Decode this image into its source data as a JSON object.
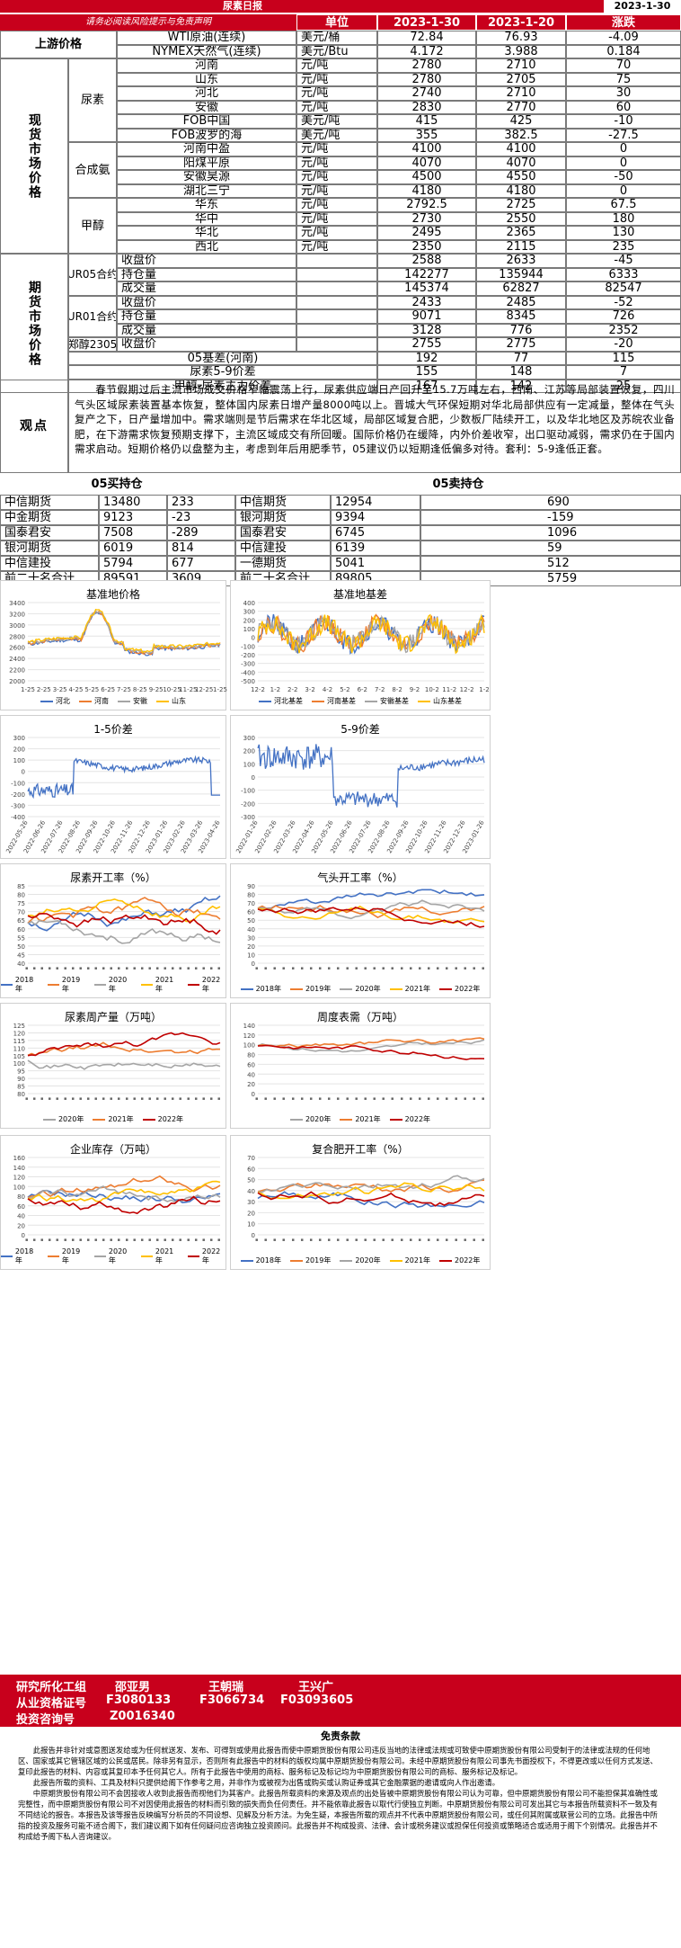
{
  "header": {
    "title": "尿素日报",
    "date": "2023-1-30",
    "links": "请务必阅读风险提示与免责声明",
    "col_unit": "单位",
    "col_d1": "2023-1-30",
    "col_d2": "2023-1-20",
    "col_chg": "涨跌"
  },
  "upstream": {
    "label": "上游价格",
    "rows": [
      [
        "WTI原油(连续)",
        "美元/桶",
        "72.84",
        "76.93",
        "-4.09"
      ],
      [
        "NYMEX天然气(连续)",
        "美元/Btu",
        "4.172",
        "3.988",
        "0.184"
      ]
    ]
  },
  "spot": {
    "label": "现货市场价格",
    "groups": [
      {
        "name": "尿素",
        "rows": [
          [
            "河南",
            "元/吨",
            "2780",
            "2710",
            "70"
          ],
          [
            "山东",
            "元/吨",
            "2780",
            "2705",
            "75"
          ],
          [
            "河北",
            "元/吨",
            "2740",
            "2710",
            "30"
          ],
          [
            "安徽",
            "元/吨",
            "2830",
            "2770",
            "60"
          ],
          [
            "FOB中国",
            "美元/吨",
            "415",
            "425",
            "-10"
          ],
          [
            "FOB波罗的海",
            "美元/吨",
            "355",
            "382.5",
            "-27.5"
          ]
        ]
      },
      {
        "name": "合成氨",
        "rows": [
          [
            "河南中盈",
            "元/吨",
            "4100",
            "4100",
            "0"
          ],
          [
            "阳煤平原",
            "元/吨",
            "4070",
            "4070",
            "0"
          ],
          [
            "安徽昊源",
            "元/吨",
            "4500",
            "4550",
            "-50"
          ],
          [
            "湖北三宁",
            "元/吨",
            "4180",
            "4180",
            "0"
          ]
        ]
      },
      {
        "name": "甲醇",
        "rows": [
          [
            "华东",
            "元/吨",
            "2792.5",
            "2725",
            "67.5"
          ],
          [
            "华中",
            "元/吨",
            "2730",
            "2550",
            "180"
          ],
          [
            "华北",
            "元/吨",
            "2495",
            "2365",
            "130"
          ],
          [
            "西北",
            "元/吨",
            "2350",
            "2115",
            "235"
          ]
        ]
      }
    ]
  },
  "futures": {
    "label": "期货市场价格",
    "groups": [
      {
        "name": "UR05合约",
        "rows": [
          [
            "收盘价",
            "",
            "2588",
            "2633",
            "-45"
          ],
          [
            "持仓量",
            "",
            "142277",
            "135944",
            "6333"
          ],
          [
            "成交量",
            "",
            "145374",
            "62827",
            "82547"
          ]
        ]
      },
      {
        "name": "UR01合约",
        "rows": [
          [
            "收盘价",
            "",
            "2433",
            "2485",
            "-52"
          ],
          [
            "持仓量",
            "",
            "9071",
            "8345",
            "726"
          ],
          [
            "成交量",
            "",
            "3128",
            "776",
            "2352"
          ]
        ]
      },
      {
        "name": "郑醇2305",
        "rows": [
          [
            "收盘价",
            "",
            "2755",
            "2775",
            "-20"
          ]
        ]
      }
    ],
    "spreads": [
      [
        "05基差(河南)",
        "192",
        "77",
        "115"
      ],
      [
        "尿素5-9价差",
        "155",
        "148",
        "7"
      ],
      [
        "甲醇-尿素主力价差",
        "167",
        "142",
        "25"
      ]
    ]
  },
  "view": {
    "label": "观点",
    "text": "春节假期过后主流市场成交价格窄幅震荡上行，尿素供应端日产回升至15.7万吨左右，西南、江苏等局部装置恢复，四川气头区域尿素装置基本恢复，整体国内尿素日增产量8000吨以上。晋城大气环保短期对华北局部供应有一定减量，整体在气头复产之下，日产量增加中。需求端则是节后需求在华北区域，局部区域复合肥，少数板厂陆续开工，以及华北地区及苏皖农业备肥，在下游需求恢复预期支撑下，主流区域成交有所回暖。国际价格仍在缓降，内外价差收窄，出口驱动减弱，需求仍在于国内需求启动。短期价格仍以盘整为主，考虑到年后用肥季节，05建议仍以短期逢低偏多对待。套利：5-9逢低正套。"
  },
  "positions": {
    "buy_title": "05买持仓",
    "sell_title": "05卖持仓",
    "buy": [
      [
        "中信期货",
        "13480",
        "233"
      ],
      [
        "中金期货",
        "9123",
        "-23"
      ],
      [
        "国泰君安",
        "7508",
        "-289"
      ],
      [
        "银河期货",
        "6019",
        "814"
      ],
      [
        "中信建投",
        "5794",
        "677"
      ],
      [
        "前二十名合计",
        "89591",
        "3609"
      ]
    ],
    "sell": [
      [
        "中信期货",
        "12954",
        "690"
      ],
      [
        "银河期货",
        "9394",
        "-159"
      ],
      [
        "国泰君安",
        "6745",
        "1096"
      ],
      [
        "中信建投",
        "6139",
        "59"
      ],
      [
        "一德期货",
        "5041",
        "512"
      ],
      [
        "前二十名合计",
        "89805",
        "5759"
      ]
    ]
  },
  "charts": {
    "basis_price": {
      "title": "基准地价格",
      "series": [
        "河北",
        "河南",
        "安徽",
        "山东"
      ],
      "y_ticks": [
        "3400",
        "3200",
        "3000",
        "2800",
        "2600",
        "2400",
        "2200",
        "2000"
      ],
      "x_ticks": [
        "1-25",
        "2-25",
        "3-25",
        "4-25",
        "5-25",
        "6-25",
        "7-25",
        "8-25",
        "9-25",
        "10-25",
        "11-25",
        "12-25",
        "1-25"
      ]
    },
    "basis_diff": {
      "title": "基准地基差",
      "series": [
        "河北基差",
        "河南基差",
        "安徽基差",
        "山东基差"
      ],
      "y_ticks": [
        "400",
        "300",
        "200",
        "100",
        "0",
        "-100",
        "-200",
        "-300",
        "-400",
        "-500"
      ],
      "x_ticks": [
        "12-2",
        "1-2",
        "2-2",
        "3-2",
        "4-2",
        "5-2",
        "6-2",
        "7-2",
        "8-2",
        "9-2",
        "10-2",
        "11-2",
        "12-2",
        "1-2"
      ]
    },
    "spread15": {
      "title": "1-5价差",
      "y_ticks": [
        "300",
        "200",
        "100",
        "0",
        "-100",
        "-200",
        "-300",
        "-400"
      ],
      "x_ticks": [
        "2022-05-26",
        "2022-06-26",
        "2022-07-26",
        "2022-08-26",
        "2022-09-26",
        "2022-10-26",
        "2022-11-26",
        "2022-12-26",
        "2023-01-26",
        "2023-02-26",
        "2023-03-26",
        "2023-04-26"
      ]
    },
    "spread59": {
      "title": "5-9价差",
      "y_ticks": [
        "300",
        "200",
        "100",
        "0",
        "-100",
        "-200",
        "-300"
      ],
      "x_ticks": [
        "2022-01-26",
        "2022-02-26",
        "2022-03-26",
        "2022-04-26",
        "2022-05-26",
        "2022-06-26",
        "2022-07-26",
        "2022-08-26",
        "2022-09-26",
        "2022-10-26",
        "2022-11-26",
        "2022-12-26",
        "2023-01-26"
      ]
    },
    "urea_rate": {
      "title": "尿素开工率（%）",
      "series": [
        "2018年",
        "2019年",
        "2020年",
        "2021年",
        "2022年"
      ],
      "y_ticks": [
        "85",
        "80",
        "75",
        "70",
        "65",
        "60",
        "55",
        "50",
        "45",
        "40"
      ]
    },
    "gas_rate": {
      "title": "气头开工率（%）",
      "series": [
        "2018年",
        "2019年",
        "2020年",
        "2021年",
        "2022年"
      ],
      "y_ticks": [
        "90",
        "80",
        "70",
        "60",
        "50",
        "40",
        "30",
        "20",
        "10",
        "0"
      ]
    },
    "weekly_output": {
      "title": "尿素周产量（万吨）",
      "series": [
        "2020年",
        "2021年",
        "2022年"
      ],
      "y_ticks": [
        "125",
        "120",
        "115",
        "110",
        "105",
        "100",
        "95",
        "90",
        "85",
        "80"
      ]
    },
    "weekly_demand": {
      "title": "周度表需（万吨）",
      "series": [
        "2020年",
        "2021年",
        "2022年"
      ],
      "y_ticks": [
        "140",
        "120",
        "100",
        "80",
        "60",
        "40",
        "20",
        "0"
      ]
    },
    "inventory": {
      "title": "企业库存（万吨）",
      "series": [
        "2018年",
        "2019年",
        "2020年",
        "2021年",
        "2022年"
      ],
      "y_ticks": [
        "160",
        "140",
        "120",
        "100",
        "80",
        "60",
        "40",
        "20",
        "0"
      ]
    },
    "compound_rate": {
      "title": "复合肥开工率（%）",
      "series": [
        "2018年",
        "2019年",
        "2020年",
        "2021年",
        "2022年"
      ],
      "y_ticks": [
        "70",
        "60",
        "50",
        "40",
        "30",
        "20",
        "10",
        "0"
      ]
    }
  },
  "colors": {
    "red": "#c8001c",
    "blue": "#4472c4",
    "orange": "#ed7d31",
    "gray": "#a5a5a5",
    "yellow": "#ffc000",
    "darkred": "#c00000"
  },
  "team": {
    "l1": "研究所化工组",
    "l2": "从业资格证号",
    "l3": "投资咨询号",
    "names": [
      "邵亚男",
      "王朝瑞",
      "王兴广"
    ],
    "ids": [
      "F3080133",
      "F3066734",
      "F03093605"
    ],
    "consult": "Z0016340"
  },
  "disclaimer": {
    "title": "免责条款",
    "p1": "此报告并非针对或意图送发给或为任何就送发、发布、可得到或使用此报告而使中原期货股份有限公司违反当地的法律或法规或可致使中原期货股份有限公司受制于的法律或法规的任何地区、国家或其它管辖区域的公民或居民。除非另有显示，否则所有此报告中的材料的版权均属中原期货股份有限公司。未经中原期货股份有限公司事先书面授权下，不得更改或以任何方式发送、复印此报告的材料、内容或其复印本予任何其它人。所有于此报告中使用的商标、服务标记及标记均为中原期货股份有限公司的商标、服务标记及标记。",
    "p2": "此报告所载的资料、工具及材料只提供给阁下作参考之用，并非作为或被视为出售或购买或认购证券或其它金融票据的邀请或向人作出邀请。",
    "p3": "中原期货股份有限公司不会因接收人收到此报告而视他们为其客户。此报告所载资料的来源及观点的出处皆被中原期货股份有限公司认为可靠，但中原期货股份有限公司不能担保其准确性或完整性，而中原期货股份有限公司不对因使用此报告的材料而引致的损失而负任何责任。并不能依靠此报告以取代行使独立判断。中原期货股份有限公司可发出其它与本报告所载资料不一致及有不同结论的报告。本报告及该等报告反映编写分析员的不同设想、见解及分析方法。为免生疑，本报告所载的观点并不代表中原期货股份有限公司，或任何其附属或联营公司的立场。此报告中所指的投资及服务可能不适合阁下，我们建议阁下如有任何疑问应咨询独立投资顾问。此报告并不构成投资、法律、会计或税务建议或担保任何投资或策略适合或适用于阁下个别情况。此报告并不构成给予阁下私人咨询建议。"
  }
}
